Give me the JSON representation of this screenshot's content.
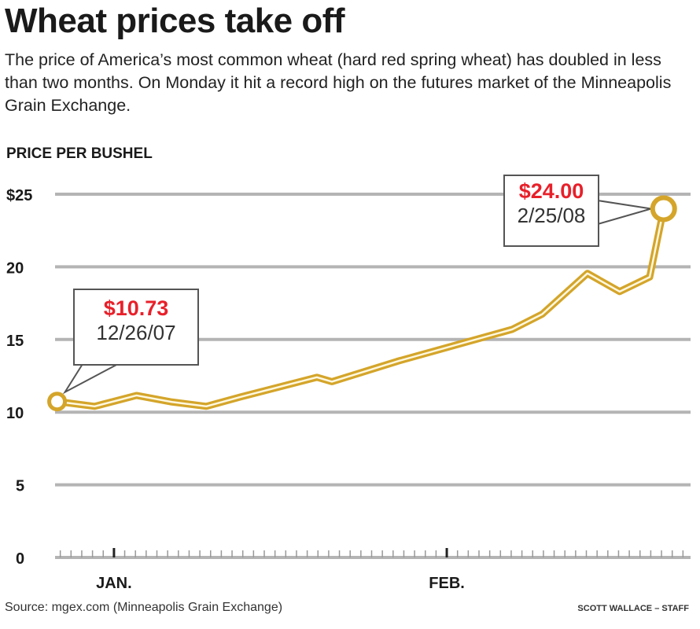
{
  "header": {
    "title": "Wheat prices take off",
    "subtitle": "The price of America’s most common wheat (hard red spring wheat) has doubled in less than two months. On Monday it hit a record high on the futures market of the Minneapolis Grain Exchange."
  },
  "footer": {
    "source": "Source: mgex.com (Minneapolis Grain Exchange)",
    "credit": "SCOTT WALLACE – STAFF"
  },
  "chart_data": {
    "type": "line",
    "title": "Wheat prices take off",
    "ylabel": "PRICE PER BUSHEL",
    "xlabel": "",
    "x_units": "days since 12/26/07",
    "xlim": [
      0,
      59.5
    ],
    "ylim": [
      0,
      25
    ],
    "grid": true,
    "yticks": [
      {
        "value": 0,
        "label": "0"
      },
      {
        "value": 5,
        "label": "5"
      },
      {
        "value": 10,
        "label": "10"
      },
      {
        "value": 15,
        "label": "15"
      },
      {
        "value": 20,
        "label": "20"
      },
      {
        "value": 25,
        "label": "$25"
      }
    ],
    "xticks": [
      {
        "value": 6,
        "label": "JAN."
      },
      {
        "value": 37,
        "label": "FEB."
      }
    ],
    "series": [
      {
        "name": "Hard red spring wheat price",
        "color": "#d4a52a",
        "x": [
          0.7,
          4.2,
          8.1,
          11.4,
          14.6,
          17.8,
          24.9,
          26.3,
          32.4,
          43.1,
          45.9,
          50.1,
          53.1,
          55.9,
          57.2
        ],
        "y": [
          10.73,
          10.4,
          11.15,
          10.7,
          10.4,
          11.05,
          12.4,
          12.1,
          13.5,
          15.7,
          16.75,
          19.55,
          18.3,
          19.3,
          24.0
        ]
      }
    ],
    "annotations": [
      {
        "value": "$10.73",
        "date": "12/26/07"
      },
      {
        "value": "$24.00",
        "date": "2/25/08"
      }
    ]
  }
}
